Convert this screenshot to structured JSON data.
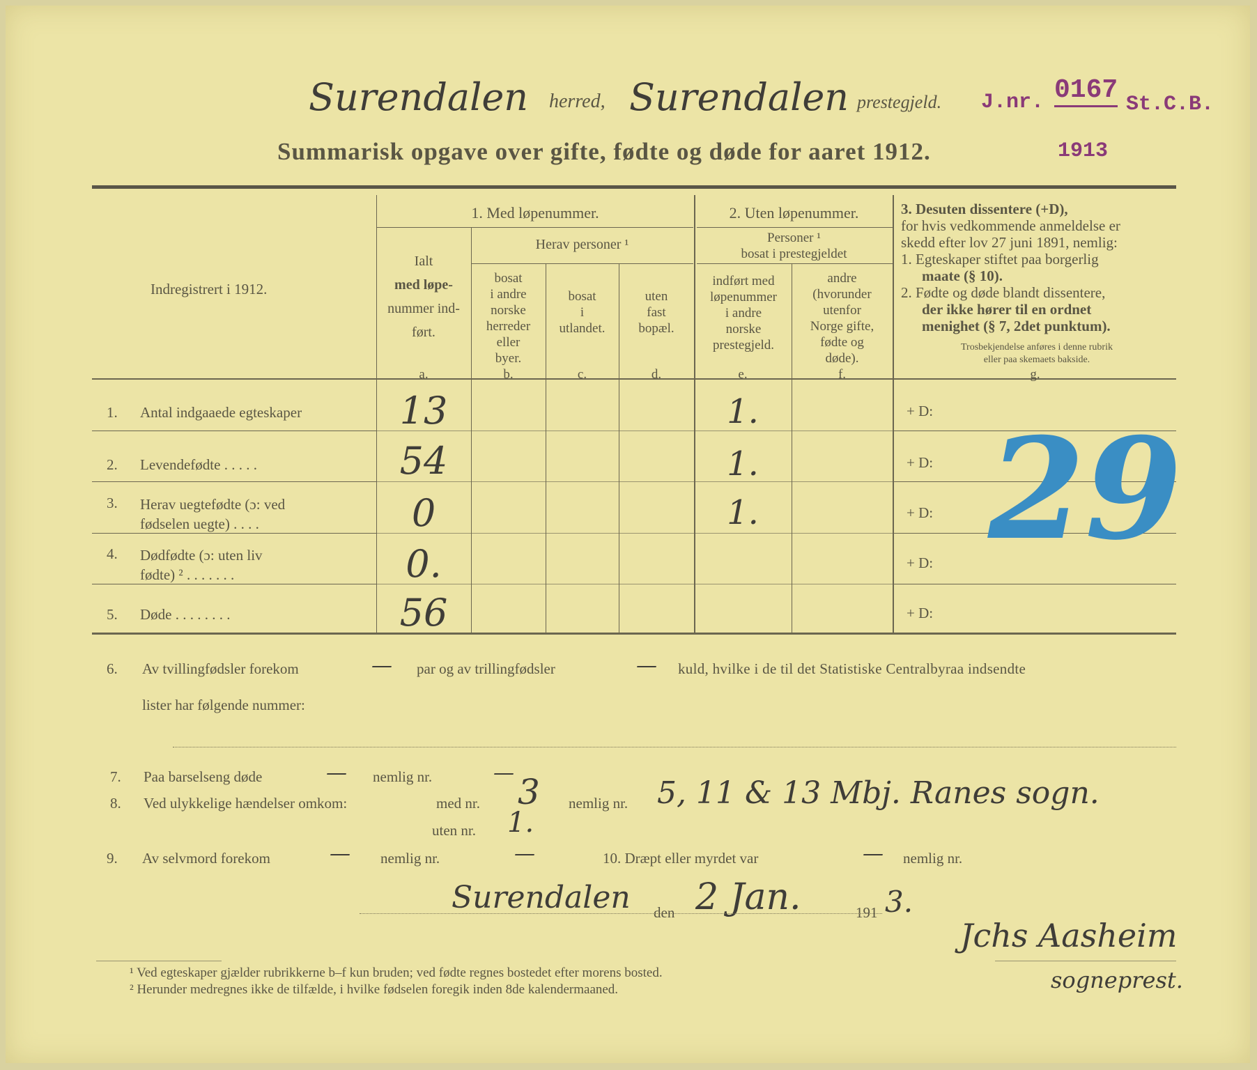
{
  "header": {
    "herred_value": "Surendalen",
    "herred_label": "herred,",
    "prestegjeld_value": "Surendalen",
    "prestegjeld_label": "prestegjeld.",
    "stamp": {
      "prefix": "J.nr.",
      "number": "0167",
      "suffix": "St.C.B.",
      "year": "1913",
      "color": "#8a3a78"
    },
    "title": "Summarisk opgave over gifte, fødte og døde for aaret 1912."
  },
  "table": {
    "row_header": "Indregistrert i 1912.",
    "group1": "1. Med løpenummer.",
    "group2": "2. Uten løpenummer.",
    "group3": {
      "title": "3. Desuten dissentere (+D),",
      "lines": [
        "for hvis vedkommende anmeldelse er",
        "skedd efter lov 27 juni 1891, nemlig:",
        "1. Egteskaper stiftet paa borgerlig",
        "maate (§ 10).",
        "2. Fødte og døde blandt dissentere,",
        "der ikke hører til en ordnet",
        "menighet (§ 7, 2det punktum)."
      ],
      "note": [
        "Trosbekjendelse anføres i denne rubrik",
        "eller paa skemaets bakside."
      ]
    },
    "col_a": [
      "Ialt",
      "med løpe-",
      "nummer ind-",
      "ført."
    ],
    "herav": "Herav personer ¹",
    "col_b": [
      "bosat",
      "i andre",
      "norske",
      "herreder",
      "eller",
      "byer."
    ],
    "col_c": [
      "bosat",
      "i",
      "utlandet."
    ],
    "col_d": [
      "uten",
      "fast",
      "bopæl."
    ],
    "personer": [
      "Personer ¹",
      "bosat i prestegjeldet"
    ],
    "col_e": [
      "indført med",
      "løpenummer",
      "i andre",
      "norske",
      "prestegjeld."
    ],
    "col_f": [
      "andre",
      "(hvorunder",
      "utenfor",
      "Norge gifte,",
      "fødte og",
      "døde)."
    ],
    "letters": [
      "a.",
      "b.",
      "c.",
      "d.",
      "e.",
      "f.",
      "g."
    ],
    "rows": [
      {
        "num": "1.",
        "label": [
          "Antal indgaaede egteskaper"
        ],
        "a": "13",
        "e": "1.",
        "g": "+ D:"
      },
      {
        "num": "2.",
        "label": [
          "Levendefødte . . . . ."
        ],
        "a": "54",
        "e": "1.",
        "g": "+ D:"
      },
      {
        "num": "3.",
        "label": [
          "Herav uegtefødte (ɔ: ved",
          "fødselen uegte) . . . ."
        ],
        "a": "0",
        "e": "1.",
        "g": "+ D:"
      },
      {
        "num": "4.",
        "label": [
          "Dødfødte (ɔ: uten liv",
          "fødte) ² . . . . . . ."
        ],
        "a": "0.",
        "e": "",
        "g": "+ D:"
      },
      {
        "num": "5.",
        "label": [
          "Døde . . . . . . . ."
        ],
        "a": "56",
        "e": "",
        "g": "+ D:"
      }
    ],
    "dissenter_handwritten": "29",
    "dissenter_color": "#3a8ec4"
  },
  "items": {
    "i6_num": "6.",
    "i6_a": "Av tvillingfødsler forekom",
    "i6_twins": "—",
    "i6_b": "par og av trillingfødsler",
    "i6_triplets": "—",
    "i6_c": "kuld, hvilke i de til det Statistiske Centralbyraa indsendte",
    "i6_d": "lister har følgende nummer:",
    "i7_num": "7.",
    "i7": "Paa barselseng døde",
    "i7_value": "—",
    "i7_nemlig": "nemlig nr.",
    "i7_nr": "—",
    "i8_num": "8.",
    "i8": "Ved ulykkelige hændelser omkom:",
    "i8_med": "med nr.",
    "i8_med_value": "3",
    "i8_nemlig": "nemlig nr.",
    "i8_nemlig_value": "5, 11 & 13 Mbj. Ranes sogn.",
    "i8_uten": "uten nr.",
    "i8_uten_value": "1.",
    "i9_num": "9.",
    "i9": "Av selvmord forekom",
    "i9_value": "—",
    "i9_nemlig": "nemlig nr.",
    "i9_nr": "—",
    "i10": "10. Dræpt eller myrdet var",
    "i10_value": "—",
    "i10_nemlig": "nemlig nr."
  },
  "signature": {
    "place": "Surendalen",
    "den": "den",
    "date": "2 Jan.",
    "year_prefix": "191",
    "year_suffix": "3.",
    "name": "Jchs Aasheim",
    "title": "sogneprest."
  },
  "footnotes": [
    "¹ Ved egteskaper gjælder rubrikkerne b–f kun bruden; ved fødte regnes bostedet efter morens bosted.",
    "² Herunder medregnes ikke de tilfælde, i hvilke fødselen foregik inden 8de kalendermaaned."
  ]
}
